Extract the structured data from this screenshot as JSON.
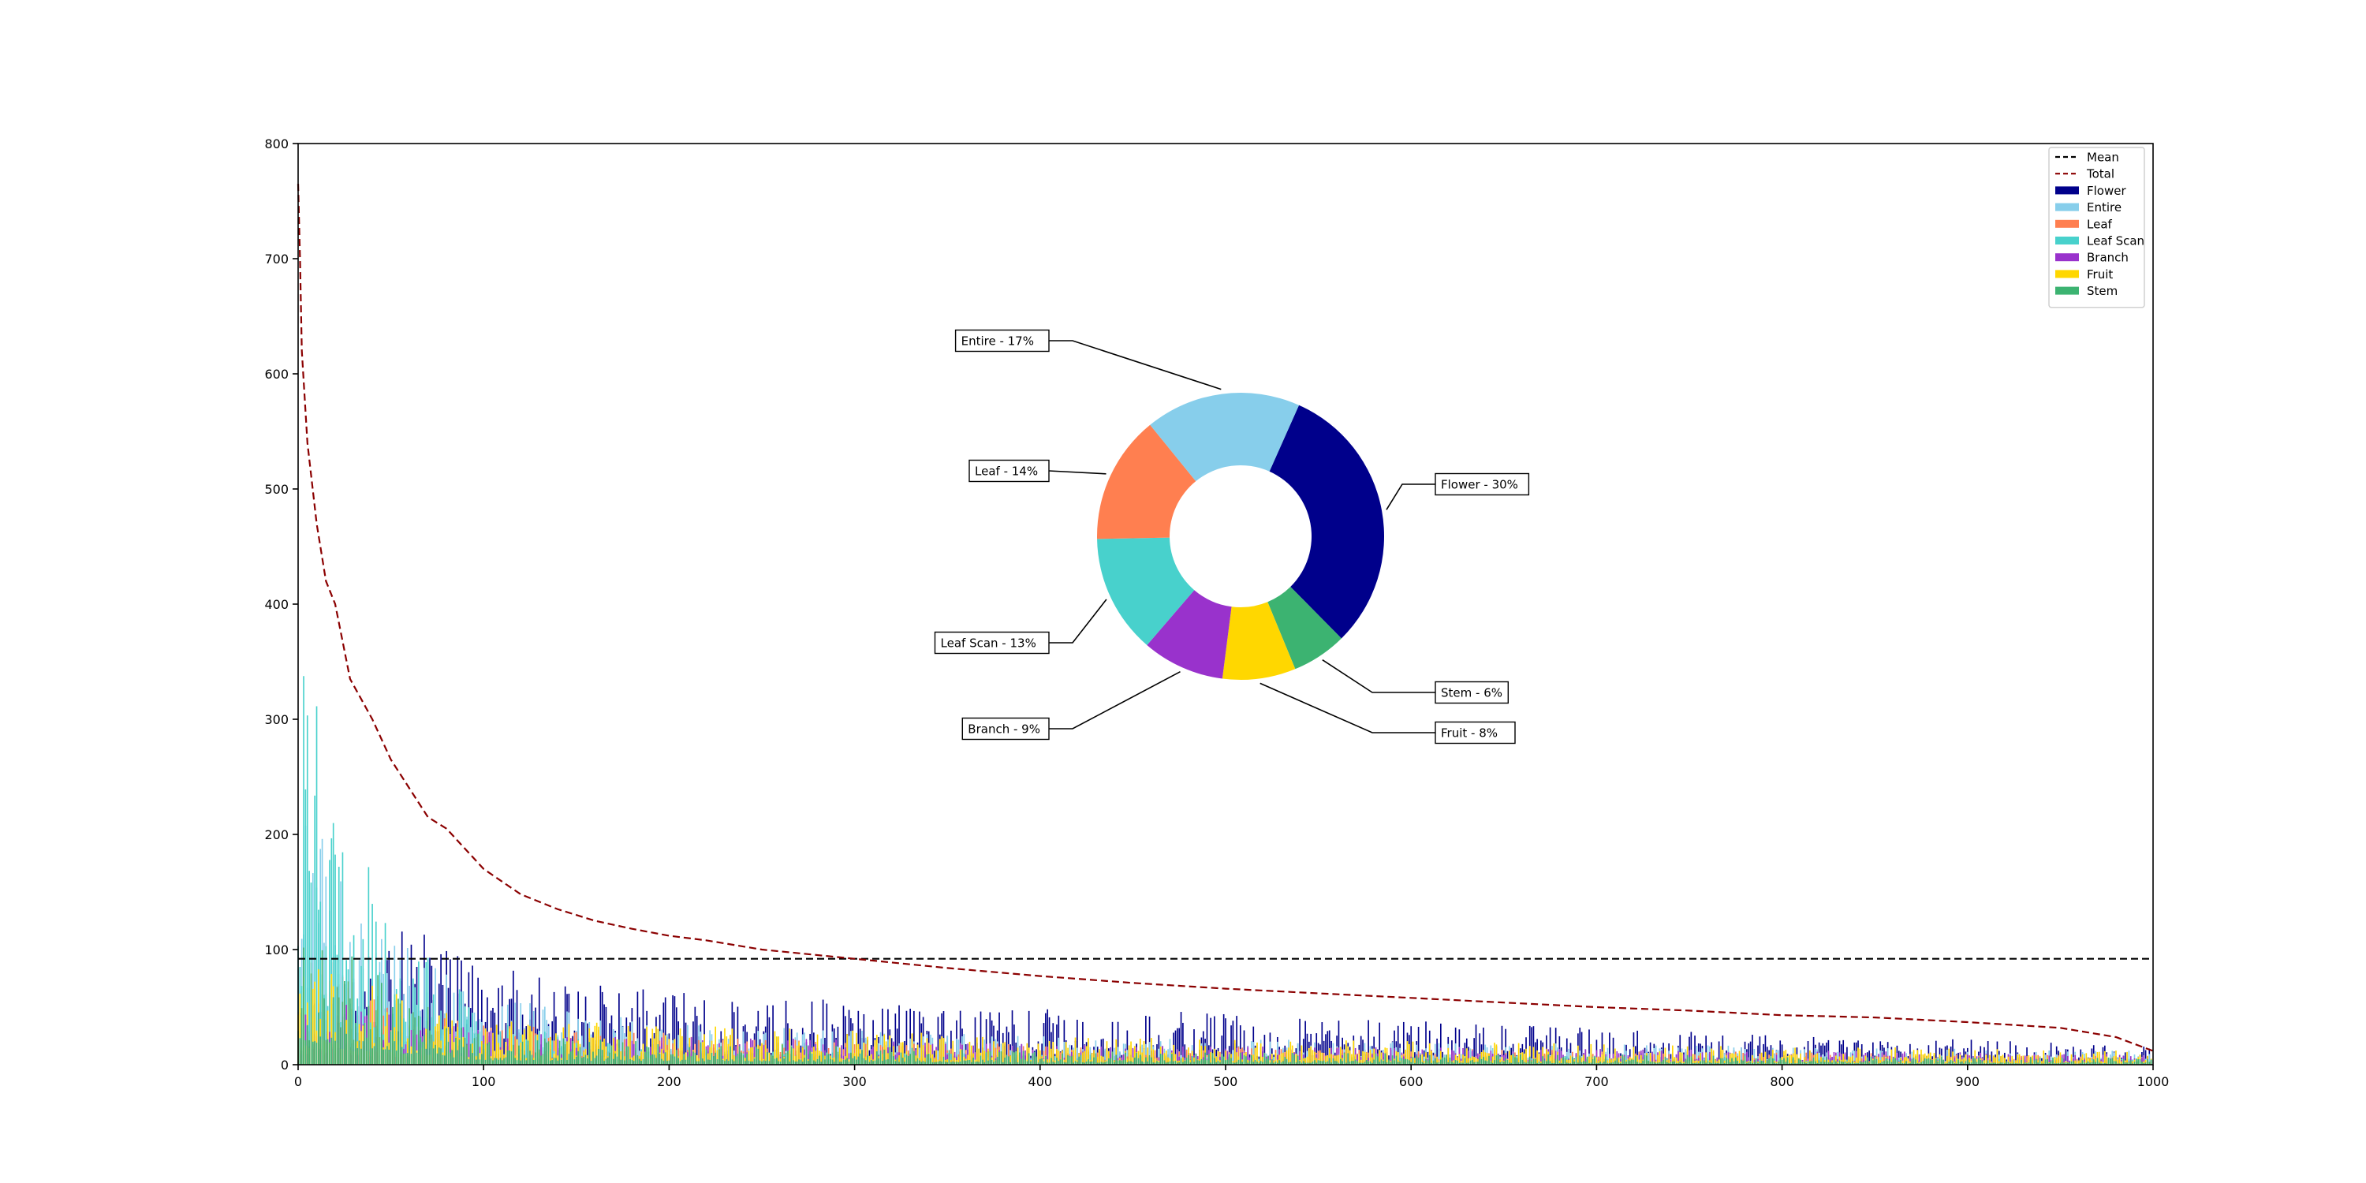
{
  "chart_data": [
    {
      "type": "bar",
      "title": "",
      "xlabel": "",
      "ylabel": "",
      "xlim": [
        0,
        1000
      ],
      "ylim": [
        0,
        800
      ],
      "x_ticks": [
        "0",
        "100",
        "200",
        "300",
        "400",
        "500",
        "600",
        "700",
        "800",
        "900",
        "1000"
      ],
      "y_ticks": [
        "0",
        "100",
        "200",
        "300",
        "400",
        "500",
        "600",
        "700",
        "800"
      ],
      "grid": false,
      "legend_position": "top-right",
      "legend": [
        {
          "label": "Mean",
          "kind": "dashed-line",
          "color": "#000000"
        },
        {
          "label": "Total",
          "kind": "dashed-line",
          "color": "#8b0000"
        },
        {
          "label": "Flower",
          "kind": "patch",
          "color": "#00008b"
        },
        {
          "label": "Entire",
          "kind": "patch",
          "color": "#87ceeb"
        },
        {
          "label": "Leaf",
          "kind": "patch",
          "color": "#ff7f50"
        },
        {
          "label": "Leaf Scan",
          "kind": "patch",
          "color": "#48d1cc"
        },
        {
          "label": "Branch",
          "kind": "patch",
          "color": "#9932cc"
        },
        {
          "label": "Fruit",
          "kind": "patch",
          "color": "#ffd700"
        },
        {
          "label": "Stem",
          "kind": "patch",
          "color": "#3cb371"
        }
      ],
      "mean_value": 92,
      "total_curve": [
        [
          0,
          765
        ],
        [
          1,
          700
        ],
        [
          2,
          620
        ],
        [
          5,
          540
        ],
        [
          10,
          470
        ],
        [
          15,
          420
        ],
        [
          20,
          400
        ],
        [
          28,
          335
        ],
        [
          40,
          300
        ],
        [
          50,
          265
        ],
        [
          60,
          240
        ],
        [
          70,
          215
        ],
        [
          80,
          205
        ],
        [
          100,
          170
        ],
        [
          120,
          148
        ],
        [
          140,
          135
        ],
        [
          160,
          125
        ],
        [
          180,
          118
        ],
        [
          200,
          112
        ],
        [
          220,
          108
        ],
        [
          250,
          100
        ],
        [
          300,
          92
        ],
        [
          350,
          84
        ],
        [
          400,
          77
        ],
        [
          450,
          71
        ],
        [
          500,
          66
        ],
        [
          550,
          62
        ],
        [
          600,
          58
        ],
        [
          650,
          54
        ],
        [
          700,
          50
        ],
        [
          750,
          47
        ],
        [
          800,
          43
        ],
        [
          850,
          41
        ],
        [
          900,
          37
        ],
        [
          950,
          32
        ],
        [
          980,
          24
        ],
        [
          1000,
          12
        ]
      ],
      "series": [
        {
          "name": "Flower",
          "color": "#00008b",
          "envelope": [
            [
              0,
              45
            ],
            [
              50,
              130
            ],
            [
              100,
              85
            ],
            [
              200,
              65
            ],
            [
              300,
              55
            ],
            [
              400,
              50
            ],
            [
              500,
              45
            ],
            [
              600,
              38
            ],
            [
              700,
              32
            ],
            [
              800,
              26
            ],
            [
              900,
              22
            ],
            [
              1000,
              16
            ]
          ]
        },
        {
          "name": "Entire",
          "color": "#87ceeb",
          "envelope": [
            [
              0,
              230
            ],
            [
              50,
              120
            ],
            [
              100,
              60
            ],
            [
              200,
              35
            ],
            [
              400,
              25
            ],
            [
              600,
              20
            ],
            [
              800,
              16
            ],
            [
              1000,
              12
            ]
          ]
        },
        {
          "name": "Leaf",
          "color": "#ff7f50",
          "envelope": [
            [
              0,
              110
            ],
            [
              50,
              60
            ],
            [
              100,
              35
            ],
            [
              300,
              20
            ],
            [
              600,
              14
            ],
            [
              1000,
              8
            ]
          ]
        },
        {
          "name": "Leaf Scan",
          "color": "#48d1cc",
          "envelope": [
            [
              0,
              380
            ],
            [
              30,
              200
            ],
            [
              60,
              120
            ],
            [
              100,
              40
            ],
            [
              200,
              12
            ],
            [
              1000,
              5
            ]
          ]
        },
        {
          "name": "Branch",
          "color": "#9932cc",
          "envelope": [
            [
              0,
              60
            ],
            [
              100,
              30
            ],
            [
              400,
              18
            ],
            [
              1000,
              10
            ]
          ]
        },
        {
          "name": "Fruit",
          "color": "#ffd700",
          "envelope": [
            [
              0,
              90
            ],
            [
              100,
              40
            ],
            [
              400,
              25
            ],
            [
              1000,
              12
            ]
          ]
        },
        {
          "name": "Stem",
          "color": "#3cb371",
          "envelope": [
            [
              0,
              140
            ],
            [
              50,
              70
            ],
            [
              100,
              25
            ],
            [
              400,
              12
            ],
            [
              1000,
              6
            ]
          ]
        }
      ]
    },
    {
      "type": "pie",
      "donut": true,
      "slices": [
        {
          "label": "Flower - 30%",
          "name": "Flower",
          "value": 30,
          "color": "#00008b"
        },
        {
          "label": "Stem - 6%",
          "name": "Stem",
          "value": 6,
          "color": "#3cb371"
        },
        {
          "label": "Fruit - 8%",
          "name": "Fruit",
          "value": 8,
          "color": "#ffd700"
        },
        {
          "label": "Branch - 9%",
          "name": "Branch",
          "value": 9,
          "color": "#9932cc"
        },
        {
          "label": "Leaf Scan - 13%",
          "name": "Leaf Scan",
          "value": 13,
          "color": "#48d1cc"
        },
        {
          "label": "Leaf - 14%",
          "name": "Leaf",
          "value": 14,
          "color": "#ff7f50"
        },
        {
          "label": "Entire - 17%",
          "name": "Entire",
          "value": 17,
          "color": "#87ceeb"
        }
      ]
    }
  ]
}
